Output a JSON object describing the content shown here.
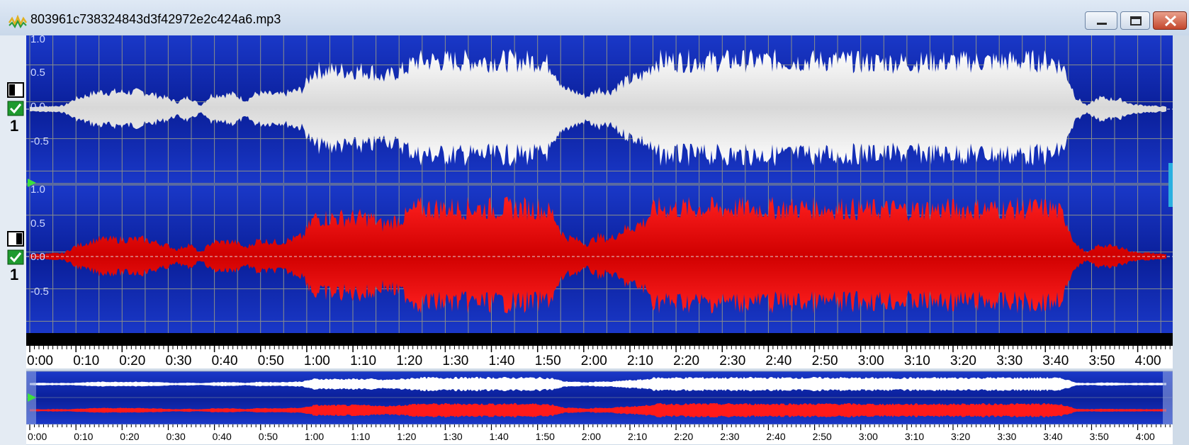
{
  "window": {
    "title": "803961c738324843d3f42972e2c424a6.mp3",
    "icon": "waveform-app-icon"
  },
  "channels": [
    {
      "number": "1",
      "color": "#ffffff",
      "enabled": true,
      "y_labels": [
        "1.0",
        "0.5",
        "0.0",
        "-0.5"
      ]
    },
    {
      "number": "1",
      "color": "#ff1a1a",
      "enabled": true,
      "y_labels": [
        "1.0",
        "0.5",
        "0.0",
        "-0.5"
      ]
    }
  ],
  "colors": {
    "background": "#0a1f9a",
    "grid": "#8a8f8a",
    "ruler": "#000000",
    "left_channel": "#ffffff",
    "right_channel": "#ff1a1a"
  },
  "timeline": {
    "labels": [
      "0:00",
      "0:10",
      "0:20",
      "0:30",
      "0:40",
      "0:50",
      "1:00",
      "1:10",
      "1:20",
      "1:30",
      "1:40",
      "1:50",
      "2:00",
      "2:10",
      "2:20",
      "2:30",
      "2:40",
      "2:50",
      "3:00",
      "3:10",
      "3:20",
      "3:30",
      "3:40",
      "3:50",
      "4:00"
    ]
  },
  "overview": {
    "labels": [
      "0:00",
      "0:10",
      "0:20",
      "0:30",
      "0:40",
      "0:50",
      "1:00",
      "1:10",
      "1:20",
      "1:30",
      "1:40",
      "1:50",
      "2:00",
      "2:10",
      "2:20",
      "2:30",
      "2:40",
      "2:50",
      "3:00",
      "3:10",
      "3:20",
      "3:30",
      "3:40",
      "3:50",
      "4:00"
    ]
  }
}
